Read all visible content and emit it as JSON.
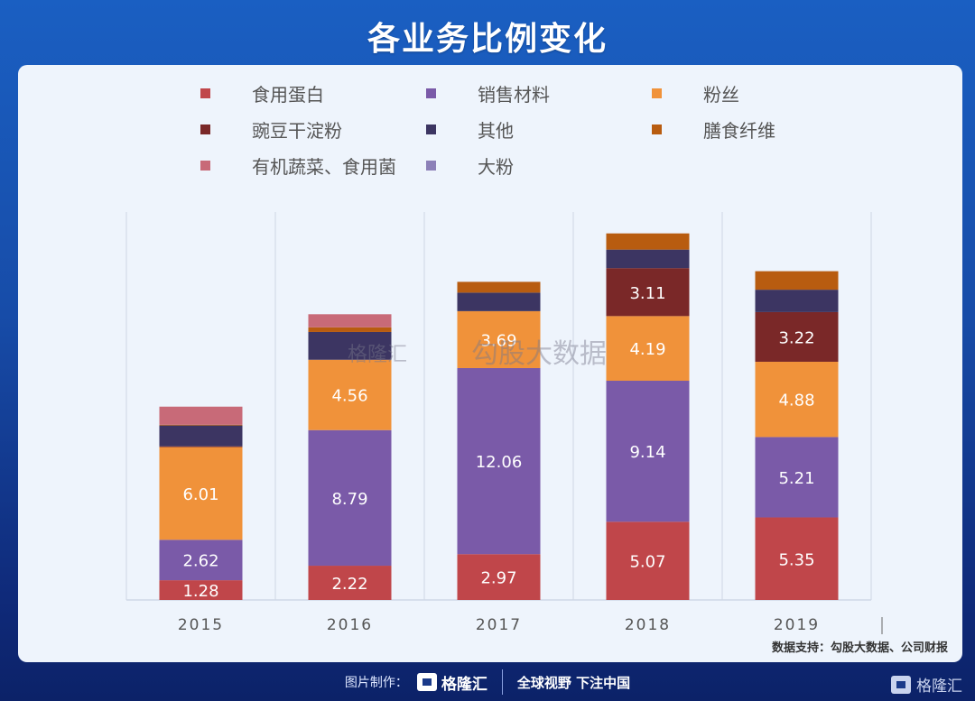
{
  "header": {
    "title": "各业务比例变化"
  },
  "legend": [
    {
      "label": "食用蛋白",
      "color": "#c0464a"
    },
    {
      "label": "销售材料",
      "color": "#7a5aa8"
    },
    {
      "label": "粉丝",
      "color": "#f0923a"
    },
    {
      "label": "豌豆干淀粉",
      "color": "#7a2828"
    },
    {
      "label": "其他",
      "color": "#3c3562"
    },
    {
      "label": "膳食纤维",
      "color": "#b85c10"
    },
    {
      "label": "有机蔬菜、食用菌",
      "color": "#c86a78"
    },
    {
      "label": "大粉",
      "color": "#8c80b8"
    }
  ],
  "watermark": {
    "brand": "格隆汇",
    "source": "勾股大数据"
  },
  "chart_data": {
    "type": "bar",
    "stacked": true,
    "title": "各业务比例变化",
    "xlabel": "",
    "ylabel": "",
    "categories": [
      "2015",
      "2016",
      "2017",
      "2018",
      "2019"
    ],
    "series": [
      {
        "name": "食用蛋白",
        "color": "#c0464a",
        "values": [
          1.28,
          2.22,
          2.97,
          5.07,
          5.35
        ],
        "labeled": true
      },
      {
        "name": "销售材料",
        "color": "#7a5aa8",
        "values": [
          2.62,
          8.79,
          12.06,
          9.14,
          5.21
        ],
        "labeled": true
      },
      {
        "name": "粉丝",
        "color": "#f0923a",
        "values": [
          6.01,
          4.56,
          3.69,
          4.19,
          4.88
        ],
        "labeled": true
      },
      {
        "name": "豌豆干淀粉",
        "color": "#7a2828",
        "values": [
          0.05,
          0,
          0,
          3.11,
          3.22
        ],
        "labeled": true
      },
      {
        "name": "其他",
        "color": "#3c3562",
        "values": [
          1.35,
          1.8,
          1.2,
          1.2,
          1.45
        ],
        "labeled": false
      },
      {
        "name": "膳食纤维",
        "color": "#b85c10",
        "values": [
          0.05,
          0.3,
          0.7,
          1.05,
          1.2
        ],
        "labeled": false
      },
      {
        "name": "有机蔬菜、食用菌",
        "color": "#c86a78",
        "values": [
          1.17,
          0.85,
          0,
          0,
          0
        ],
        "labeled": false
      },
      {
        "name": "大粉",
        "color": "#8c80b8",
        "values": [
          0,
          0,
          0,
          0,
          0
        ],
        "labeled": false
      }
    ],
    "ylim": [
      0,
      25
    ],
    "grid": "vertical separators",
    "legend_position": "top"
  },
  "source": "数据支持：勾股大数据、公司财报",
  "footer": {
    "made_by": "图片制作：",
    "brand": "格隆汇",
    "slogan": "全球视野 下注中国"
  }
}
